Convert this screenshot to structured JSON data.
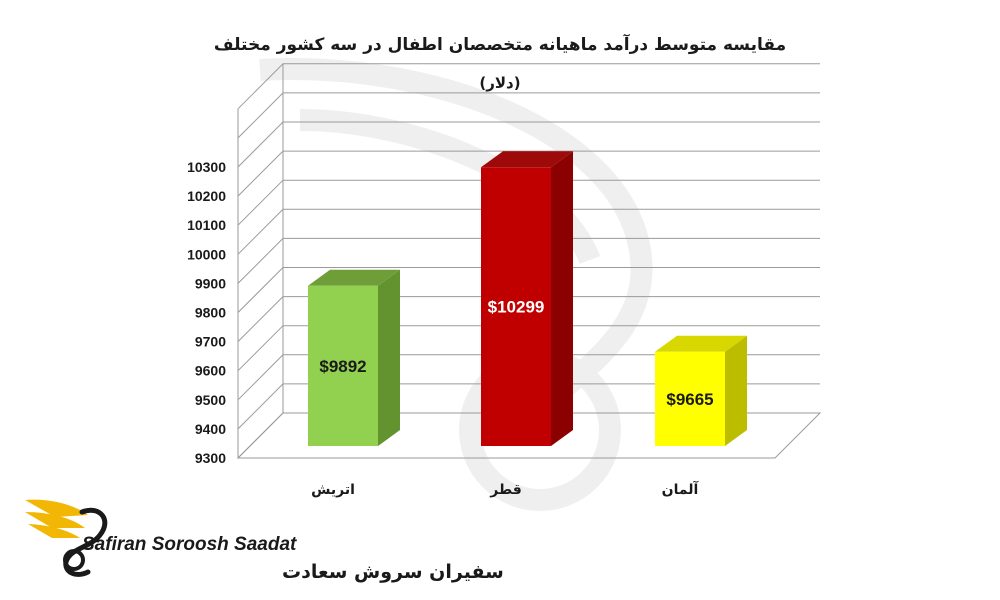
{
  "chart_data": {
    "type": "bar",
    "title": "مقایسه متوسط درآمد ماهیانه متخصصان اطفال در سه کشور مختلف",
    "subtitle": "(دلار)",
    "categories": [
      "اتریش",
      "قطر",
      "آلمان"
    ],
    "values": [
      9892,
      10299,
      9665
    ],
    "data_labels": [
      "$9892",
      "$10299",
      "$9665"
    ],
    "ylim": [
      9300,
      10300
    ],
    "yticks": [
      "9300",
      "9400",
      "9500",
      "9600",
      "9700",
      "9800",
      "9900",
      "10000",
      "10100",
      "10200",
      "10300"
    ],
    "grid": true,
    "legend": "none",
    "style": "3d-column"
  },
  "colors": {
    "bars": [
      {
        "front": "#92d050",
        "side": "#63932f",
        "top": "#6f9e38",
        "label": "#1a1a1a"
      },
      {
        "front": "#c00000",
        "side": "#8b0000",
        "top": "#9e0a0a",
        "label": "#ffffff"
      },
      {
        "front": "#ffff00",
        "side": "#bdbd00",
        "top": "#d8d800",
        "label": "#1a1a1a"
      }
    ],
    "grid": "#9a9a9a"
  },
  "logo": {
    "name_en": "Safiran Soroosh Saadat",
    "name_fa": "سفیران سروش سعادت",
    "icon": "wing-swan-logo-icon",
    "accent": "#f2b705"
  }
}
